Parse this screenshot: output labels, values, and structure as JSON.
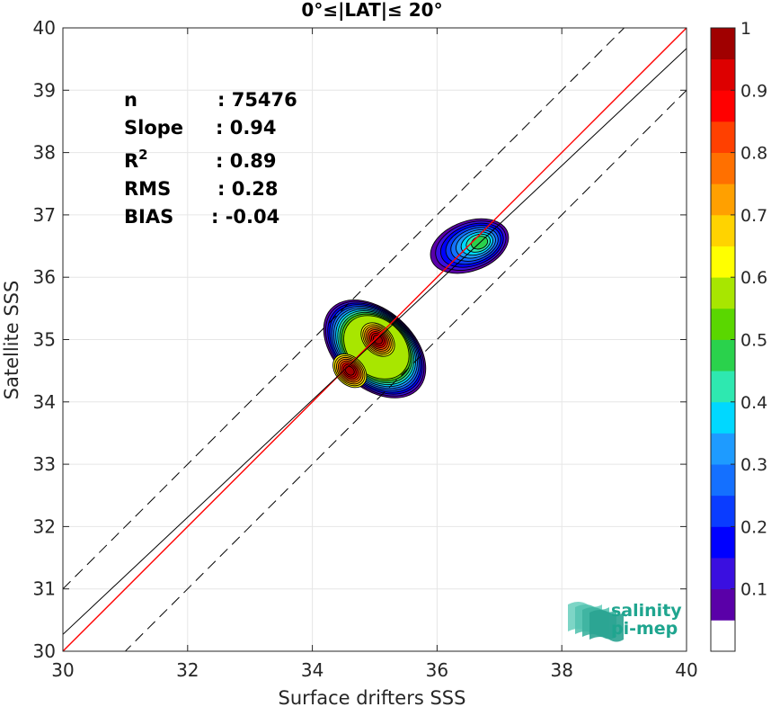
{
  "chart_data": {
    "type": "heatmap",
    "title": "0°≤|LAT|≤ 20°",
    "xlabel": "Surface drifters SSS",
    "ylabel": "Satellite SSS",
    "xlim": [
      30,
      40
    ],
    "ylim": [
      30,
      40
    ],
    "xticks": [
      30,
      32,
      34,
      36,
      38,
      40
    ],
    "yticks": [
      30,
      31,
      32,
      33,
      34,
      35,
      36,
      37,
      38,
      39,
      40
    ],
    "grid": true,
    "stats": [
      {
        "name": "n",
        "value": ": 75476"
      },
      {
        "name": "Slope",
        "value": ": 0.94"
      },
      {
        "name": "R",
        "sup": "2",
        "value": ": 0.89"
      },
      {
        "name": "RMS",
        "value": ": 0.28"
      },
      {
        "name": "BIAS",
        "value": ": -0.04"
      }
    ],
    "lines": [
      {
        "kind": "one-to-one",
        "color": "#ff0000",
        "style": "solid",
        "x": [
          30,
          40
        ],
        "y": [
          30,
          40
        ]
      },
      {
        "kind": "regression",
        "color": "#000000",
        "style": "solid",
        "x": [
          30,
          40
        ],
        "y": [
          30.27,
          39.67
        ]
      },
      {
        "kind": "upper-bound",
        "color": "#000000",
        "style": "dashed",
        "x": [
          30,
          40
        ],
        "y": [
          31.0,
          41.0
        ]
      },
      {
        "kind": "lower-bound",
        "color": "#000000",
        "style": "dashed",
        "x": [
          30,
          40
        ],
        "y": [
          29.0,
          39.0
        ]
      }
    ],
    "density_peaks": [
      {
        "x": 34.6,
        "y": 34.5,
        "value": 1.0
      },
      {
        "x": 35.05,
        "y": 35.0,
        "value": 1.0
      },
      {
        "x": 36.7,
        "y": 36.55,
        "value": 0.45
      }
    ],
    "colorbar": {
      "range": [
        0,
        1
      ],
      "ticks": [
        0.1,
        0.2,
        0.3,
        0.4,
        0.5,
        0.6,
        0.7,
        0.8,
        0.9,
        1
      ],
      "tick_labels": [
        "0.1",
        "0.2",
        "0.3",
        "0.4",
        "0.5",
        "0.6",
        "0.7",
        "0.8",
        "0.9",
        "1"
      ],
      "colors": [
        "#ffffff",
        "#5a00a8",
        "#3a0fe0",
        "#0000ff",
        "#0a3cff",
        "#1470ff",
        "#1e9bff",
        "#00d8ff",
        "#2ee8b0",
        "#2ad24c",
        "#5ad700",
        "#a8e600",
        "#ffff00",
        "#ffd300",
        "#ffa000",
        "#ff7000",
        "#ff4000",
        "#ff0000",
        "#dd0000",
        "#a00000"
      ]
    },
    "logo": {
      "line1": "salinity",
      "line2": "pi-mep"
    }
  }
}
